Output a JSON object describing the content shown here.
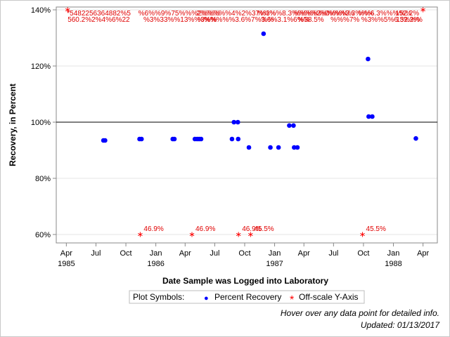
{
  "chart_data": {
    "type": "scatter",
    "xlabel": "Date Sample was Logged into Laboratory",
    "ylabel": "Recovery, in Percent",
    "ylim": [
      57,
      141
    ],
    "xlim": [
      "1985-03-01",
      "1988-05-15"
    ],
    "reference_line": 100,
    "grid": true,
    "y_ticks": [
      60,
      80,
      100,
      120,
      140
    ],
    "y_tick_labels": [
      "60%",
      "80%",
      "100%",
      "120%",
      "140%"
    ],
    "x_ticks": [
      {
        "date": "1985-04-01",
        "label": "Apr",
        "year": "1985"
      },
      {
        "date": "1985-07-01",
        "label": "Jul",
        "year": ""
      },
      {
        "date": "1985-10-01",
        "label": "Oct",
        "year": ""
      },
      {
        "date": "1986-01-01",
        "label": "Jan",
        "year": "1986"
      },
      {
        "date": "1986-04-01",
        "label": "Apr",
        "year": ""
      },
      {
        "date": "1986-07-01",
        "label": "Jul",
        "year": ""
      },
      {
        "date": "1986-10-01",
        "label": "Oct",
        "year": ""
      },
      {
        "date": "1987-01-01",
        "label": "Jan",
        "year": "1987"
      },
      {
        "date": "1987-04-01",
        "label": "Apr",
        "year": ""
      },
      {
        "date": "1987-07-01",
        "label": "Jul",
        "year": ""
      },
      {
        "date": "1987-10-01",
        "label": "Oct",
        "year": ""
      },
      {
        "date": "1988-01-01",
        "label": "Jan",
        "year": "1988"
      },
      {
        "date": "1988-04-01",
        "label": "Apr",
        "year": ""
      }
    ],
    "series": [
      {
        "name": "Percent Recovery",
        "color": "#0000ff",
        "marker": "circle",
        "points": [
          {
            "x": "1985-07-24",
            "y": 93.5
          },
          {
            "x": "1985-07-29",
            "y": 93.5
          },
          {
            "x": "1985-11-12",
            "y": 94
          },
          {
            "x": "1985-11-18",
            "y": 94
          },
          {
            "x": "1986-02-22",
            "y": 94
          },
          {
            "x": "1986-02-27",
            "y": 94
          },
          {
            "x": "1986-05-01",
            "y": 94
          },
          {
            "x": "1986-05-08",
            "y": 94
          },
          {
            "x": "1986-05-14",
            "y": 94
          },
          {
            "x": "1986-05-20",
            "y": 94
          },
          {
            "x": "1986-08-23",
            "y": 94
          },
          {
            "x": "1986-08-29",
            "y": 100
          },
          {
            "x": "1986-09-10",
            "y": 100
          },
          {
            "x": "1986-09-11",
            "y": 94
          },
          {
            "x": "1986-10-14",
            "y": 91
          },
          {
            "x": "1986-11-28",
            "y": 131.5
          },
          {
            "x": "1986-12-19",
            "y": 91
          },
          {
            "x": "1987-01-13",
            "y": 91
          },
          {
            "x": "1987-02-15",
            "y": 98.8
          },
          {
            "x": "1987-02-28",
            "y": 98.8
          },
          {
            "x": "1987-03-02",
            "y": 91
          },
          {
            "x": "1987-03-12",
            "y": 91
          },
          {
            "x": "1987-10-15",
            "y": 122.5
          },
          {
            "x": "1987-10-17",
            "y": 102
          },
          {
            "x": "1987-10-28",
            "y": 102
          },
          {
            "x": "1988-03-10",
            "y": 94.2
          }
        ]
      },
      {
        "name": "Off-scale Y-Axis",
        "color": "#ff0000",
        "marker": "asterisk",
        "points": [
          {
            "x": "1985-11-14",
            "y": 60,
            "label": "46.9%"
          },
          {
            "x": "1986-04-22",
            "y": 60,
            "label": "46.9%"
          },
          {
            "x": "1986-09-12",
            "y": 60,
            "label": "46.9%"
          },
          {
            "x": "1986-10-19",
            "y": 60,
            "label": "45.5%"
          },
          {
            "x": "1987-09-28",
            "y": 60,
            "label": "45.5%"
          },
          {
            "x": "1985-04-05",
            "y": 140,
            "label": "560.2%"
          },
          {
            "x": "1988-04-01",
            "y": 140,
            "label": "152.2%"
          }
        ]
      }
    ],
    "top_overlap_text": [
      {
        "x": "1985-04-03",
        "row": 1,
        "text": "*5482256364882%5"
      },
      {
        "x": "1985-04-05",
        "row": 2,
        "text": "560.2%2%4%6%22"
      },
      {
        "x": "1985-11-08",
        "row": 1,
        "text": "%6%%9%75%%%2%%%"
      },
      {
        "x": "1985-11-24",
        "row": 2,
        "text": "%3%33%%13%%3%%"
      },
      {
        "x": "1986-05-05",
        "row": 1,
        "text": "2%%%%%4%2%37%3%"
      },
      {
        "x": "1986-05-09",
        "row": 2,
        "text": "%%%%%%3.6%7%%%"
      },
      {
        "x": "1986-11-08",
        "row": 1,
        "text": "%%%%8.3%%%%3%"
      },
      {
        "x": "1986-11-21",
        "row": 2,
        "text": "3.6%3.1%6%%"
      },
      {
        "x": "1987-03-01",
        "row": 1,
        "text": "%%%%%0%%%%"
      },
      {
        "x": "1987-03-13",
        "row": 2,
        "text": "%38.5%"
      },
      {
        "x": "1987-06-10",
        "row": 1,
        "text": "%%%3.3%%%"
      },
      {
        "x": "1987-06-22",
        "row": 2,
        "text": "%%%7%"
      },
      {
        "x": "1987-09-14",
        "row": 1,
        "text": "%%6.3%%%%%"
      },
      {
        "x": "1987-09-24",
        "row": 2,
        "text": "%3%%5%6.3%%%"
      },
      {
        "x": "1988-01-07",
        "row": 1,
        "text": "152.2%"
      },
      {
        "x": "1988-01-09",
        "row": 2,
        "text": "152.2%"
      }
    ]
  },
  "legend": {
    "title": "Plot Symbols:",
    "items": [
      {
        "label": "Percent Recovery",
        "symbol": "●",
        "color": "#0000ff"
      },
      {
        "label": "Off-scale Y-Axis",
        "symbol": "*",
        "color": "#ff0000"
      }
    ]
  },
  "footnotes": {
    "hover": "Hover over any data point for detailed info.",
    "updated": "Updated: 01/13/2017"
  },
  "colors": {
    "grid": "#e6e6e6",
    "axis": "#888888",
    "reference": "#000000"
  }
}
